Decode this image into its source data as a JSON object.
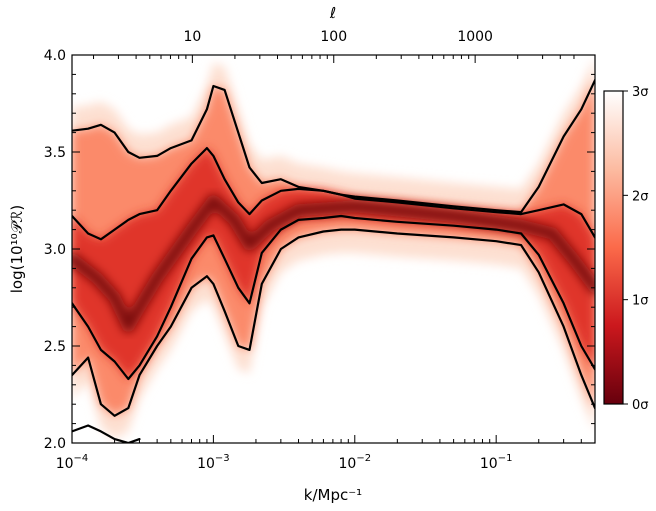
{
  "chart_data": {
    "type": "line",
    "title": "",
    "xlabel": "k/Mpc⁻¹",
    "ylabel": "log(10¹⁰𝒫ℛ)",
    "top_axis_label": "ℓ",
    "x_scale": "log",
    "xlim": [
      0.0001,
      0.5
    ],
    "ylim": [
      2.0,
      4.0
    ],
    "x_ticks": [
      {
        "value": 0.0001,
        "label_base": "10",
        "label_exp": "−4"
      },
      {
        "value": 0.001,
        "label_base": "10",
        "label_exp": "−3"
      },
      {
        "value": 0.01,
        "label_base": "10",
        "label_exp": "−2"
      },
      {
        "value": 0.1,
        "label_base": "10",
        "label_exp": "−1"
      }
    ],
    "y_ticks": [
      "2.0",
      "2.5",
      "3.0",
      "3.5",
      "4.0"
    ],
    "top_ticks": [
      {
        "label": "10",
        "k": 0.00071
      },
      {
        "label": "100",
        "k": 0.0071
      },
      {
        "label": "1000",
        "k": 0.071
      }
    ],
    "colorbar": {
      "labels": [
        "3σ",
        "2σ",
        "1σ",
        "0σ"
      ],
      "colors": [
        "#ffffff",
        "#fcbba1",
        "#fb6a4a",
        "#cb181d",
        "#67000d"
      ]
    },
    "series": [
      {
        "x": [
          0.0001,
          0.00013,
          0.00016,
          0.0002,
          0.00025,
          0.0003,
          0.0004,
          0.0005,
          0.0007,
          0.0009,
          0.001,
          0.0012,
          0.0015,
          0.0018,
          0.0022,
          0.003,
          0.004,
          0.006,
          0.008,
          0.01,
          0.02,
          0.05,
          0.1,
          0.15,
          0.2,
          0.3,
          0.4,
          0.5
        ],
        "y": [
          3.61,
          3.62,
          3.64,
          3.6,
          3.5,
          3.47,
          3.48,
          3.52,
          3.56,
          3.72,
          3.84,
          3.82,
          3.6,
          3.42,
          3.34,
          3.36,
          3.32,
          3.3,
          3.28,
          3.27,
          3.25,
          3.22,
          3.2,
          3.19,
          3.32,
          3.58,
          3.72,
          3.87
        ]
      },
      {
        "x": [
          0.0001,
          0.00013,
          0.00016,
          0.0002,
          0.00025,
          0.0003,
          0.0004,
          0.0005,
          0.0007,
          0.0009,
          0.001,
          0.0012,
          0.0015,
          0.0018,
          0.0022,
          0.003,
          0.004,
          0.006,
          0.008,
          0.01,
          0.02,
          0.05,
          0.1,
          0.15,
          0.2,
          0.3,
          0.4,
          0.5
        ],
        "y": [
          3.17,
          3.08,
          3.05,
          3.1,
          3.15,
          3.18,
          3.2,
          3.3,
          3.44,
          3.52,
          3.48,
          3.36,
          3.24,
          3.18,
          3.25,
          3.3,
          3.31,
          3.3,
          3.28,
          3.26,
          3.24,
          3.21,
          3.19,
          3.18,
          3.2,
          3.23,
          3.18,
          3.06
        ]
      },
      {
        "x": [
          0.0001,
          0.00013,
          0.00016,
          0.0002,
          0.00025,
          0.0003,
          0.0004,
          0.0005,
          0.0007,
          0.0009,
          0.001,
          0.0012,
          0.0015,
          0.0018,
          0.0022,
          0.003,
          0.004,
          0.006,
          0.008,
          0.01,
          0.02,
          0.05,
          0.1,
          0.15,
          0.2,
          0.3,
          0.4,
          0.5
        ],
        "y": [
          2.72,
          2.6,
          2.48,
          2.42,
          2.33,
          2.4,
          2.55,
          2.7,
          2.95,
          3.06,
          3.07,
          2.95,
          2.8,
          2.72,
          2.98,
          3.1,
          3.15,
          3.16,
          3.17,
          3.16,
          3.14,
          3.12,
          3.1,
          3.08,
          2.97,
          2.72,
          2.5,
          2.38
        ]
      },
      {
        "x": [
          0.0001,
          0.00013,
          0.00016,
          0.0002,
          0.00025,
          0.0003,
          0.0004,
          0.0005,
          0.0007,
          0.0009,
          0.001,
          0.0012,
          0.0015,
          0.0018,
          0.0022,
          0.003,
          0.004,
          0.006,
          0.008,
          0.01,
          0.02,
          0.05,
          0.1,
          0.15,
          0.2,
          0.3,
          0.4,
          0.5
        ],
        "y": [
          2.35,
          2.44,
          2.2,
          2.14,
          2.18,
          2.35,
          2.5,
          2.6,
          2.8,
          2.86,
          2.82,
          2.68,
          2.5,
          2.48,
          2.82,
          3.0,
          3.06,
          3.09,
          3.1,
          3.1,
          3.08,
          3.06,
          3.04,
          3.02,
          2.88,
          2.6,
          2.35,
          2.18
        ]
      },
      {
        "x": [
          0.0001,
          0.00013,
          0.00016,
          0.0002,
          0.00025,
          0.0003
        ],
        "y": [
          2.06,
          2.09,
          2.06,
          2.02,
          2.0,
          2.02
        ]
      }
    ],
    "median": {
      "x": [
        0.0001,
        0.00015,
        0.0002,
        0.00025,
        0.0003,
        0.0004,
        0.0005,
        0.0007,
        0.001,
        0.0014,
        0.0018,
        0.0025,
        0.004,
        0.01,
        0.05,
        0.15,
        0.25,
        0.35,
        0.5
      ],
      "y": [
        2.95,
        2.85,
        2.75,
        2.6,
        2.7,
        2.85,
        2.95,
        3.1,
        3.25,
        3.15,
        3.02,
        3.12,
        3.2,
        3.22,
        3.17,
        3.12,
        3.08,
        2.95,
        2.8
      ]
    }
  }
}
